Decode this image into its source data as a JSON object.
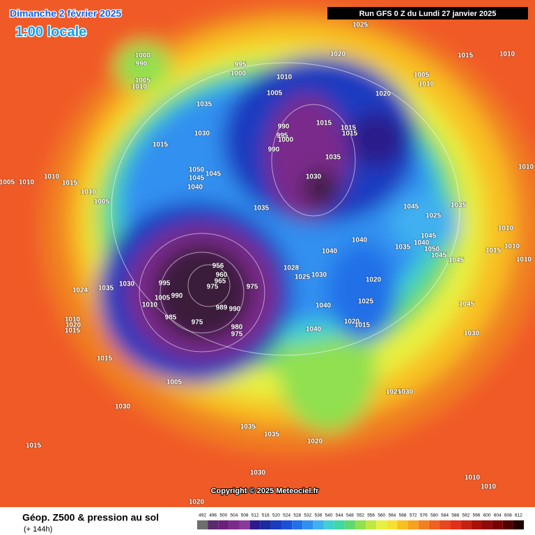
{
  "header": {
    "date": "Dimanche 2 février 2025",
    "time": "1:00 locale",
    "run": "Run GFS 0 Z du Lundi 27 janvier 2025"
  },
  "isobar_labels": [
    "1025",
    "1020",
    "1015",
    "1010",
    "1000",
    "990",
    "1005",
    "1010",
    "995",
    "1000",
    "1010",
    "1005",
    "1010",
    "1020",
    "1035",
    "1005",
    "990",
    "995",
    "1000",
    "990",
    "1015",
    "1015",
    "1015",
    "1030",
    "1015",
    "1035",
    "1030",
    "1050",
    "1045",
    "1045",
    "1040",
    "1010",
    "1005",
    "1010",
    "1010",
    "1015",
    "1010",
    "1005",
    "1035",
    "1035",
    "1045",
    "1025",
    "1045",
    "1040",
    "1050",
    "1035",
    "1045",
    "1045",
    "1040",
    "1040",
    "1010",
    "1015",
    "1010",
    "1010",
    "1020",
    "1028",
    "1025",
    "1030",
    "975",
    "1035",
    "1030",
    "1024",
    "995",
    "1005",
    "990",
    "1010",
    "1040",
    "1025",
    "1045",
    "1020",
    "1015",
    "1040",
    "1030",
    "985",
    "975",
    "980",
    "975",
    "1010",
    "1020",
    "1015",
    "1015",
    "1005",
    "1025",
    "1030",
    "1030",
    "1035",
    "1035",
    "1015",
    "1020",
    "1030",
    "1010",
    "1010",
    "1020",
    "956",
    "960",
    "965",
    "975",
    "989",
    "990"
  ],
  "copyright": "Copyright © 2025 Meteociel.fr",
  "legend": {
    "title": "Géop. Z500 & pression au sol",
    "subtitle": "(+ 144h)",
    "scale": [
      492,
      496,
      500,
      504,
      508,
      512,
      516,
      520,
      524,
      528,
      532,
      536,
      540,
      544,
      548,
      552,
      556,
      560,
      564,
      568,
      572,
      576,
      580,
      584,
      588,
      592,
      596,
      600,
      604,
      608,
      612
    ],
    "colors": [
      "#6e6e6e",
      "#5a2a6a",
      "#6a1f7a",
      "#7a2a8a",
      "#8a3a9a",
      "#2a1a8a",
      "#1a2aa0",
      "#1a3ac0",
      "#1a50d8",
      "#2070e8",
      "#3090f0",
      "#40b0f0",
      "#40d0d0",
      "#40d8a0",
      "#60d870",
      "#90e050",
      "#c0e840",
      "#e8f040",
      "#f8e030",
      "#f8c020",
      "#f8a020",
      "#f08020",
      "#f06020",
      "#e84820",
      "#e03018",
      "#c82010",
      "#a81008",
      "#900808",
      "#780000",
      "#500000",
      "#200000"
    ]
  }
}
